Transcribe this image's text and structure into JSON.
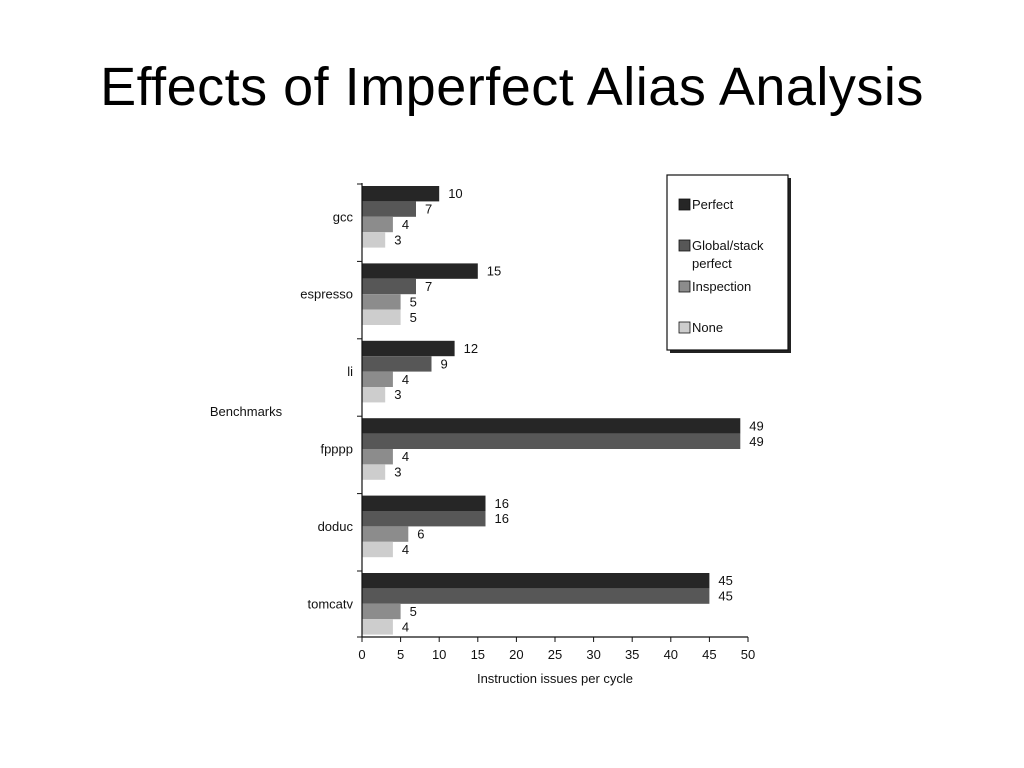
{
  "slide": {
    "title": "Effects of Imperfect Alias Analysis"
  },
  "chart_data": {
    "type": "bar",
    "orientation": "horizontal",
    "categories": [
      "gcc",
      "espresso",
      "li",
      "fpppp",
      "doduc",
      "tomcatv"
    ],
    "series": [
      {
        "name": "Perfect",
        "values": [
          10,
          15,
          12,
          49,
          16,
          45
        ],
        "color": "#262626"
      },
      {
        "name": "Global/stack perfect",
        "values": [
          7,
          7,
          9,
          49,
          16,
          45
        ],
        "color": "#575757"
      },
      {
        "name": "Inspection",
        "values": [
          4,
          5,
          4,
          4,
          6,
          5
        ],
        "color": "#8c8c8c"
      },
      {
        "name": "None",
        "values": [
          3,
          5,
          3,
          3,
          4,
          4
        ],
        "color": "#cdcdcd"
      }
    ],
    "xlabel": "Instruction issues per cycle",
    "ylabel": "Benchmarks",
    "xlim": [
      0,
      50
    ],
    "xticks": [
      0,
      5,
      10,
      15,
      20,
      25,
      30,
      35,
      40,
      45,
      50
    ],
    "grid": false,
    "data_labels": true,
    "legend_position": "top-right"
  }
}
